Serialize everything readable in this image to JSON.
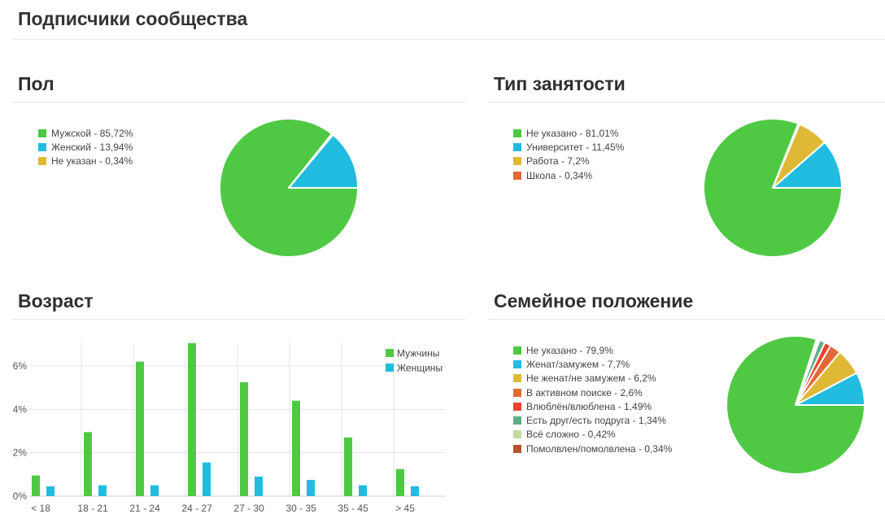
{
  "page": {
    "title": "Подписчики сообщества"
  },
  "chart_data": [
    {
      "id": "gender",
      "type": "pie",
      "title": "Пол",
      "legend_position": "left",
      "slices": [
        {
          "label": "Мужской - 85,72%",
          "value": 85.72,
          "color": "#4fc944"
        },
        {
          "label": "Женский - 13,94%",
          "value": 13.94,
          "color": "#21bce0"
        },
        {
          "label": "Не указан - 0,34%",
          "value": 0.34,
          "color": "#dfb935"
        }
      ]
    },
    {
      "id": "employment",
      "type": "pie",
      "title": "Тип занятости",
      "legend_position": "left",
      "slices": [
        {
          "label": "Не указано - 81,01%",
          "value": 81.01,
          "color": "#4fc944"
        },
        {
          "label": "Университет - 11,45%",
          "value": 11.45,
          "color": "#21bce0"
        },
        {
          "label": "Работа - 7,2%",
          "value": 7.2,
          "color": "#dfb935"
        },
        {
          "label": "Школа - 0,34%",
          "value": 0.34,
          "color": "#e06a35"
        }
      ]
    },
    {
      "id": "age",
      "type": "bar",
      "title": "Возраст",
      "categories": [
        "< 18",
        "18 - 21",
        "21 - 24",
        "24 - 27",
        "27 - 30",
        "30 - 35",
        "35 - 45",
        "> 45"
      ],
      "series": [
        {
          "name": "Мужчины",
          "color": "#4fc944",
          "values": [
            0.95,
            2.95,
            6.2,
            7.05,
            5.25,
            4.4,
            2.7,
            1.25
          ]
        },
        {
          "name": "Женщины",
          "color": "#21bce0",
          "values": [
            0.45,
            0.5,
            0.5,
            1.55,
            0.9,
            0.75,
            0.5,
            0.45
          ]
        }
      ],
      "yticks": [
        "0%",
        "2%",
        "4%",
        "6%"
      ],
      "ylim": [
        0,
        7.05
      ],
      "grid": true,
      "legend_position": "top-right"
    },
    {
      "id": "family",
      "type": "pie",
      "title": "Семейное положение",
      "legend_position": "left",
      "slices": [
        {
          "label": "Не указано - 79,9%",
          "value": 79.9,
          "color": "#4fc944"
        },
        {
          "label": "Женат/замужем - 7,7%",
          "value": 7.7,
          "color": "#21bce0"
        },
        {
          "label": "Не женат/не замужем - 6,2%",
          "value": 6.2,
          "color": "#dfb935"
        },
        {
          "label": "В активном поиске - 2,6%",
          "value": 2.6,
          "color": "#e06a35"
        },
        {
          "label": "Влюблён/влюблена - 1,49%",
          "value": 1.49,
          "color": "#e8442a"
        },
        {
          "label": "Есть друг/есть подруга - 1,34%",
          "value": 1.34,
          "color": "#5fae8a"
        },
        {
          "label": "Всё сложно - 0,42%",
          "value": 0.42,
          "color": "#c2dca0"
        },
        {
          "label": "Помолвлен/помолвлена - 0,34%",
          "value": 0.34,
          "color": "#b8532b"
        }
      ]
    }
  ]
}
